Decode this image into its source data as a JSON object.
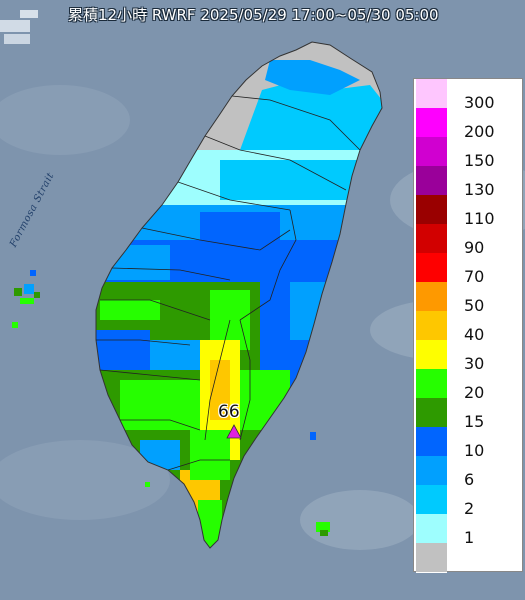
{
  "title": "累積12小時 RWRF 2025/05/29 17:00~05/30 05:00",
  "strait_label": "Formosa Strait",
  "peak": {
    "label": "66",
    "marker_color": "#e020e0"
  },
  "legend": [
    {
      "label": "300",
      "color": "#fec6fe"
    },
    {
      "label": "200",
      "color": "#fe00fe"
    },
    {
      "label": "150",
      "color": "#d000d0"
    },
    {
      "label": "130",
      "color": "#9a009a"
    },
    {
      "label": "110",
      "color": "#9a0000"
    },
    {
      "label": "90",
      "color": "#d20000"
    },
    {
      "label": "70",
      "color": "#fe0000"
    },
    {
      "label": "50",
      "color": "#fe9900"
    },
    {
      "label": "40",
      "color": "#fec700"
    },
    {
      "label": "30",
      "color": "#fefe00"
    },
    {
      "label": "20",
      "color": "#26fe00"
    },
    {
      "label": "15",
      "color": "#2e9a00"
    },
    {
      "label": "10",
      "color": "#0165fe"
    },
    {
      "label": "6",
      "color": "#01a0fe"
    },
    {
      "label": "2",
      "color": "#00cafe"
    },
    {
      "label": "1",
      "color": "#9efefe"
    },
    {
      "label": "",
      "color": "#c1c1c1"
    }
  ],
  "colors": {
    "sea": "#7e94ad",
    "no_rain": "#c1c1c1"
  }
}
